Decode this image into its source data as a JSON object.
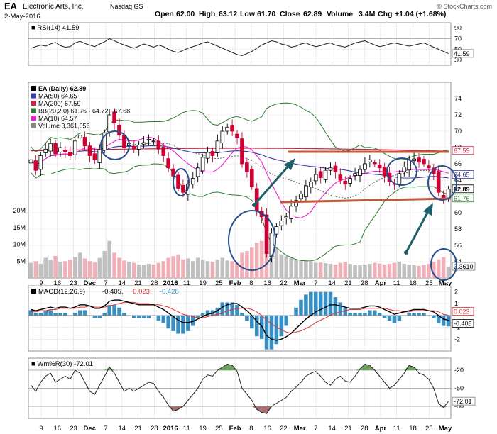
{
  "header": {
    "symbol": "EA",
    "company": "Electronic Arts, Inc.",
    "exchange": "Nasdaq GS",
    "date": "2-May-2016",
    "open_label": "Open",
    "open": "62.00",
    "high_label": "High",
    "high": "63.12",
    "low_label": "Low",
    "low": "61.70",
    "close_label": "Close",
    "close": "62.89",
    "volume_label": "Volume",
    "volume": "3.4M",
    "chg_label": "Chg",
    "chg": "+1.04 (+1.68%)",
    "watermark": "© StockCharts.com"
  },
  "colors": {
    "up": "#000000",
    "down": "#cc0033",
    "ma50": "#3a3aa0",
    "ma200": "#cc2244",
    "bb": "#2e7d32",
    "ma10": "#ee22cc",
    "vol_up": "#c0c0c0",
    "vol_down": "#f0b0b8",
    "macd_hist": "#3a8fc0",
    "will_fill": "#6b9f5a",
    "will_fill_low": "#a5706e",
    "annot_line": "#c0583a",
    "annot_arrow": "#1e5f6a",
    "annot_circle": "#2a4d8c"
  },
  "x_labels": [
    "9",
    "16",
    "23",
    "Dec",
    "7",
    "14",
    "21",
    "28",
    "2016",
    "11",
    "19",
    "25",
    "Feb",
    "8",
    "16",
    "22",
    "Mar",
    "7",
    "14",
    "21",
    "28",
    "Apr",
    "11",
    "18",
    "25",
    "May"
  ],
  "chart_data": [
    {
      "type": "line",
      "title": "RSI(14) 41.59",
      "legend": "RSI(14) 41.59",
      "ylim": [
        20,
        100
      ],
      "y_ticks": [
        "90",
        "70",
        "50",
        "30"
      ],
      "last_value": "41.59",
      "series": [
        {
          "name": "RSI(14)",
          "values": [
            52,
            55,
            58,
            56,
            60,
            63,
            57,
            54,
            55,
            62,
            65,
            61,
            58,
            55,
            60,
            64,
            70,
            66,
            62,
            58,
            55,
            52,
            56,
            60,
            57,
            54,
            58,
            55,
            50,
            46,
            44,
            48,
            52,
            55,
            58,
            62,
            64,
            60,
            56,
            52,
            48,
            44,
            40,
            38,
            42,
            46,
            52,
            58,
            62,
            66,
            64,
            60,
            58,
            54,
            56,
            60,
            62,
            58,
            55,
            57,
            60,
            62,
            58,
            56,
            54,
            58,
            62,
            64,
            66,
            62,
            58,
            55,
            57,
            60,
            62,
            60,
            58,
            56,
            58,
            60,
            62,
            58,
            54,
            50,
            46,
            42
          ]
        }
      ]
    },
    {
      "type": "candlestick",
      "title": "EA (Daily) 62.89",
      "ylim": [
        52,
        76
      ],
      "y_ticks": [
        "74",
        "72",
        "70",
        "68",
        "66",
        "64",
        "62",
        "60",
        "58",
        "56",
        "54"
      ],
      "vol_ticks": [
        "20M",
        "15M",
        "10M",
        "5M"
      ],
      "legend": [
        "EA (Daily) 62.89",
        "MA(50) 64.65",
        "MA(200) 67.59",
        "BB(20,2.0) 61.76 - 64.72 - 67.68",
        "MA(10) 64.57",
        "Volume 3,361,056"
      ],
      "price_tags": [
        "67.59",
        "64.65",
        "62.89",
        "61.76"
      ],
      "vol_tag": "3.3610",
      "close": [
        66.5,
        65.2,
        67.0,
        67.8,
        68.5,
        67.2,
        68.0,
        67.5,
        67.0,
        68.8,
        69.5,
        68.2,
        67.0,
        66.5,
        67.8,
        69.8,
        72.0,
        71.0,
        69.5,
        68.0,
        68.5,
        67.9,
        68.3,
        68.6,
        69.0,
        68.8,
        67.8,
        67.0,
        65.5,
        64.5,
        63.0,
        62.5,
        63.5,
        64.2,
        65.5,
        66.8,
        67.4,
        67.0,
        68.8,
        70.0,
        70.5,
        70.0,
        69.2,
        66.0,
        65.0,
        63.2,
        60.2,
        59.5,
        55.0,
        57.5,
        58.3,
        59.0,
        59.5,
        60.8,
        61.5,
        62.3,
        63.3,
        63.8,
        64.7,
        64.3,
        65.2,
        65.5,
        65.0,
        64.0,
        63.5,
        64.2,
        64.8,
        65.3,
        66.0,
        66.5,
        66.0,
        65.5,
        64.5,
        63.8,
        63.5,
        64.8,
        65.6,
        66.5,
        66.6,
        66.2,
        66.0,
        65.5,
        64.8,
        62.5,
        61.85,
        62.89
      ],
      "volume_m": [
        4.5,
        5.0,
        4.2,
        6.0,
        5.5,
        6.5,
        4.8,
        5.0,
        5.5,
        6.2,
        7.5,
        5.8,
        5.0,
        4.6,
        6.0,
        8.0,
        11.0,
        7.5,
        6.0,
        5.2,
        4.8,
        4.5,
        4.0,
        3.8,
        4.2,
        4.0,
        4.5,
        5.0,
        6.0,
        6.5,
        7.0,
        5.5,
        5.8,
        5.0,
        6.0,
        5.5,
        5.0,
        4.8,
        5.5,
        6.0,
        5.2,
        5.0,
        4.5,
        7.5,
        8.0,
        9.0,
        10.5,
        11.0,
        12.0,
        13.0,
        9.0,
        7.0,
        6.5,
        6.0,
        5.5,
        5.0,
        5.2,
        4.8,
        4.5,
        4.6,
        4.4,
        4.2,
        4.0,
        4.5,
        4.8,
        4.2,
        4.0,
        3.8,
        4.0,
        4.2,
        4.5,
        4.3,
        4.0,
        4.2,
        4.5,
        4.8,
        4.2,
        4.0,
        3.8,
        3.6,
        3.9,
        4.2,
        4.8,
        5.5,
        6.2,
        3.4
      ]
    },
    {
      "type": "line",
      "title": "MACD(12,26,9) -0.405, 0.023, -0.428",
      "legend_name": "MACD(12,26,9)",
      "legend_values": [
        "-0.405,",
        "0.023,",
        "-0.428"
      ],
      "ylim": [
        -3,
        2.5
      ],
      "y_ticks": [
        "2",
        "1",
        "-1",
        "-2"
      ],
      "tags": [
        "0.023",
        "-0.405"
      ],
      "series": [
        {
          "name": "MACD",
          "values": [
            0.5,
            0.4,
            0.5,
            0.6,
            0.7,
            0.6,
            0.7,
            0.7,
            0.6,
            0.7,
            0.9,
            0.9,
            0.8,
            0.6,
            0.6,
            0.8,
            1.2,
            1.3,
            1.3,
            1.2,
            1.1,
            1.0,
            0.9,
            0.9,
            0.9,
            0.9,
            0.7,
            0.5,
            0.2,
            -0.1,
            -0.4,
            -0.6,
            -0.6,
            -0.5,
            -0.3,
            -0.1,
            0.1,
            0.2,
            0.4,
            0.7,
            0.9,
            1.0,
            1.0,
            0.7,
            0.4,
            0.0,
            -0.5,
            -0.9,
            -1.7,
            -2.0,
            -2.1,
            -2.0,
            -1.8,
            -1.5,
            -1.1,
            -0.7,
            -0.3,
            0.0,
            0.3,
            0.5,
            0.7,
            0.9,
            0.9,
            0.8,
            0.7,
            0.6,
            0.6,
            0.6,
            0.7,
            0.8,
            0.8,
            0.7,
            0.5,
            0.3,
            0.1,
            0.2,
            0.3,
            0.4,
            0.5,
            0.5,
            0.5,
            0.4,
            0.3,
            0.0,
            -0.3,
            -0.4
          ]
        },
        {
          "name": "Signal",
          "values": [
            0.3,
            0.3,
            0.4,
            0.4,
            0.5,
            0.5,
            0.6,
            0.6,
            0.6,
            0.6,
            0.7,
            0.7,
            0.8,
            0.7,
            0.7,
            0.7,
            0.8,
            0.9,
            1.0,
            1.1,
            1.1,
            1.1,
            1.0,
            1.0,
            1.0,
            0.9,
            0.9,
            0.8,
            0.7,
            0.5,
            0.3,
            0.1,
            0.0,
            -0.1,
            -0.2,
            -0.2,
            -0.1,
            0.0,
            0.1,
            0.2,
            0.4,
            0.5,
            0.6,
            0.6,
            0.6,
            0.5,
            0.3,
            0.0,
            -0.4,
            -0.7,
            -1.0,
            -1.2,
            -1.4,
            -1.5,
            -1.4,
            -1.3,
            -1.1,
            -0.9,
            -0.6,
            -0.4,
            -0.2,
            0.0,
            0.2,
            0.3,
            0.4,
            0.5,
            0.5,
            0.5,
            0.6,
            0.6,
            0.6,
            0.6,
            0.6,
            0.5,
            0.4,
            0.4,
            0.3,
            0.3,
            0.4,
            0.4,
            0.4,
            0.4,
            0.4,
            0.3,
            0.1,
            0.02
          ]
        }
      ]
    },
    {
      "type": "line",
      "title": "Wm%R(30) -72.01",
      "legend": "Wm%R(30) -72.01",
      "ylim": [
        -100,
        0
      ],
      "y_ticks": [
        "-20",
        "-50",
        "-80"
      ],
      "last_value": "-72.01",
      "series": [
        {
          "name": "Wm%R(30)",
          "values": [
            -45,
            -55,
            -40,
            -30,
            -25,
            -40,
            -35,
            -30,
            -35,
            -20,
            -25,
            -40,
            -55,
            -60,
            -45,
            -30,
            -15,
            -25,
            -40,
            -55,
            -50,
            -55,
            -50,
            -45,
            -40,
            -42,
            -55,
            -65,
            -78,
            -88,
            -85,
            -80,
            -70,
            -60,
            -50,
            -35,
            -28,
            -30,
            -20,
            -15,
            -10,
            -12,
            -22,
            -50,
            -60,
            -70,
            -85,
            -90,
            -92,
            -80,
            -75,
            -70,
            -65,
            -55,
            -48,
            -40,
            -30,
            -25,
            -22,
            -30,
            -40,
            -45,
            -35,
            -30,
            -38,
            -40,
            -30,
            -18,
            -10,
            -12,
            -20,
            -30,
            -40,
            -50,
            -45,
            -35,
            -25,
            -12,
            -15,
            -25,
            -28,
            -35,
            -50,
            -75,
            -82,
            -72
          ]
        }
      ]
    }
  ]
}
